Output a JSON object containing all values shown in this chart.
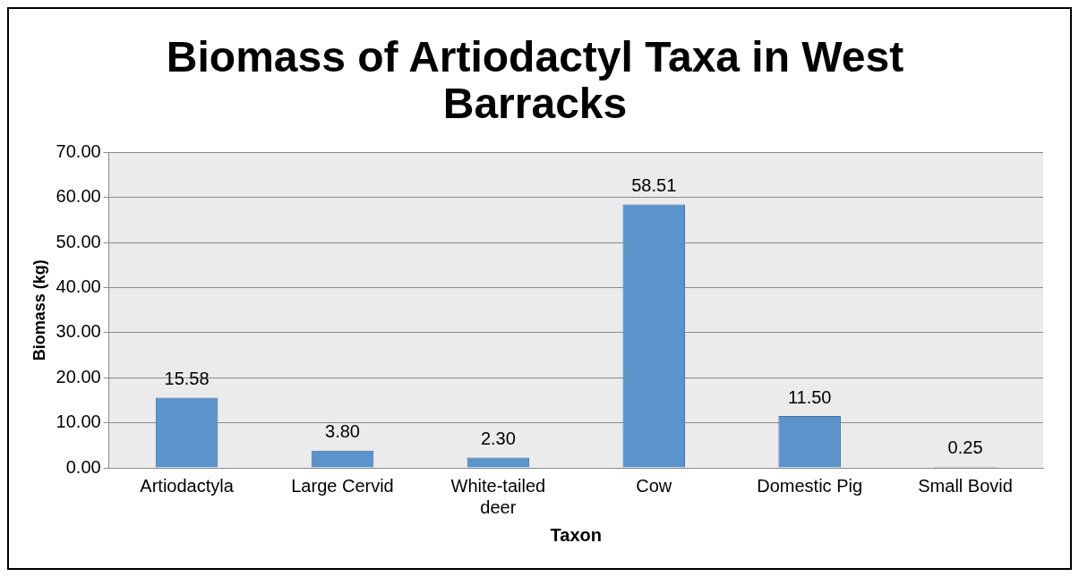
{
  "chart_data": {
    "type": "bar",
    "title": "Biomass of Artiodactyl Taxa in West Barracks",
    "xlabel": "Taxon",
    "ylabel": "Biomass (kg)",
    "categories": [
      "Artiodactyla",
      "Large Cervid",
      "White-tailed deer",
      "Cow",
      "Domestic Pig",
      "Small Bovid"
    ],
    "values": [
      15.58,
      3.8,
      2.3,
      58.51,
      11.5,
      0.25
    ],
    "value_labels": [
      "15.58",
      "3.80",
      "2.30",
      "58.51",
      "11.50",
      "0.25"
    ],
    "color": "#5b93cb",
    "ylim": [
      0,
      70
    ],
    "yticks": [
      {
        "value": 0,
        "label": "0.00"
      },
      {
        "value": 10,
        "label": "10.00"
      },
      {
        "value": 20,
        "label": "20.00"
      },
      {
        "value": 30,
        "label": "30.00"
      },
      {
        "value": 40,
        "label": "40.00"
      },
      {
        "value": 50,
        "label": "50.00"
      },
      {
        "value": 60,
        "label": "60.00"
      },
      {
        "value": 70,
        "label": "70.00"
      }
    ],
    "grid": "y",
    "legend": false
  }
}
